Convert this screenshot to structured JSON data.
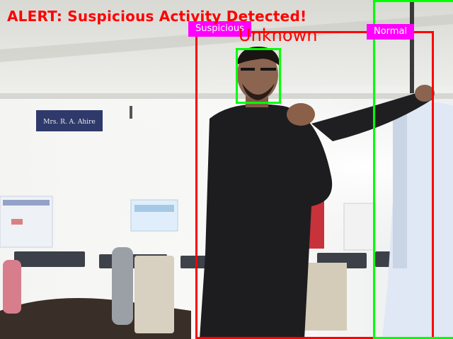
{
  "alert": {
    "text": "ALERT: Suspicious Activity Detected!",
    "color": "#ff0000"
  },
  "detections": {
    "primary": {
      "identity_label": "Unknown",
      "behavior_label": "Suspicious",
      "box_color": "#ff0000",
      "face_box_color": "#00ff00"
    },
    "secondary": {
      "behavior_label": "Normal",
      "box_color": "#00ff00"
    },
    "label_bg_color": "#ff00ff"
  },
  "scene": {
    "nameplate_text": "Mrs. R. A. Ahire"
  }
}
